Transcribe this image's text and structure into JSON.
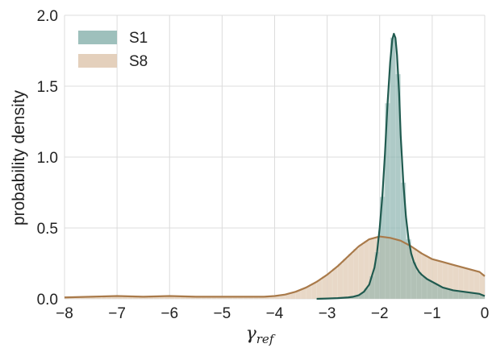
{
  "chart_data": {
    "type": "area",
    "title": "",
    "xlabel": {
      "main": "γ",
      "sub": "ref"
    },
    "ylabel": "probability density",
    "xlim": [
      -8,
      0
    ],
    "ylim": [
      0,
      2.0
    ],
    "xticks": [
      -8,
      -7,
      -6,
      -5,
      -4,
      -3,
      -2,
      -1,
      0
    ],
    "xtick_labels": [
      "−8",
      "−7",
      "−6",
      "−5",
      "−4",
      "−3",
      "−2",
      "−1",
      "0"
    ],
    "yticks": [
      0.0,
      0.5,
      1.0,
      1.5,
      2.0
    ],
    "ytick_labels": [
      "0.0",
      "0.5",
      "1.0",
      "1.5",
      "2.0"
    ],
    "grid": true,
    "legend_position": "top-left",
    "histogram_bin_width": 0.1,
    "series": [
      {
        "name": "S1",
        "fill_color": "#8db5b0",
        "line_color": "#1f5a4f",
        "points": [
          [
            -3.2,
            0.0
          ],
          [
            -3.0,
            0.002
          ],
          [
            -2.8,
            0.005
          ],
          [
            -2.6,
            0.01
          ],
          [
            -2.5,
            0.015
          ],
          [
            -2.4,
            0.025
          ],
          [
            -2.3,
            0.05
          ],
          [
            -2.2,
            0.1
          ],
          [
            -2.1,
            0.22
          ],
          [
            -2.05,
            0.33
          ],
          [
            -2.0,
            0.5
          ],
          [
            -1.95,
            0.72
          ],
          [
            -1.9,
            1.02
          ],
          [
            -1.85,
            1.38
          ],
          [
            -1.8,
            1.67
          ],
          [
            -1.76,
            1.83
          ],
          [
            -1.73,
            1.87
          ],
          [
            -1.7,
            1.84
          ],
          [
            -1.67,
            1.72
          ],
          [
            -1.63,
            1.45
          ],
          [
            -1.6,
            1.15
          ],
          [
            -1.55,
            0.82
          ],
          [
            -1.5,
            0.58
          ],
          [
            -1.45,
            0.42
          ],
          [
            -1.4,
            0.32
          ],
          [
            -1.35,
            0.26
          ],
          [
            -1.3,
            0.22
          ],
          [
            -1.25,
            0.19
          ],
          [
            -1.2,
            0.17
          ],
          [
            -1.1,
            0.14
          ],
          [
            -1.0,
            0.12
          ],
          [
            -0.9,
            0.1
          ],
          [
            -0.8,
            0.08
          ],
          [
            -0.7,
            0.07
          ],
          [
            -0.6,
            0.06
          ],
          [
            -0.5,
            0.055
          ],
          [
            -0.4,
            0.05
          ],
          [
            -0.3,
            0.045
          ],
          [
            -0.2,
            0.04
          ],
          [
            -0.1,
            0.035
          ],
          [
            0.0,
            0.02
          ]
        ]
      },
      {
        "name": "S8",
        "fill_color": "#dfc8b0",
        "line_color": "#a97a4a",
        "points": [
          [
            -8.0,
            0.01
          ],
          [
            -7.5,
            0.015
          ],
          [
            -7.0,
            0.02
          ],
          [
            -6.5,
            0.015
          ],
          [
            -6.0,
            0.02
          ],
          [
            -5.5,
            0.015
          ],
          [
            -5.0,
            0.015
          ],
          [
            -4.5,
            0.015
          ],
          [
            -4.2,
            0.015
          ],
          [
            -4.0,
            0.02
          ],
          [
            -3.8,
            0.03
          ],
          [
            -3.6,
            0.05
          ],
          [
            -3.4,
            0.08
          ],
          [
            -3.2,
            0.12
          ],
          [
            -3.0,
            0.17
          ],
          [
            -2.8,
            0.23
          ],
          [
            -2.6,
            0.3
          ],
          [
            -2.4,
            0.37
          ],
          [
            -2.2,
            0.42
          ],
          [
            -2.0,
            0.44
          ],
          [
            -1.8,
            0.43
          ],
          [
            -1.6,
            0.41
          ],
          [
            -1.4,
            0.37
          ],
          [
            -1.2,
            0.32
          ],
          [
            -1.0,
            0.28
          ],
          [
            -0.8,
            0.26
          ],
          [
            -0.6,
            0.24
          ],
          [
            -0.4,
            0.22
          ],
          [
            -0.2,
            0.2
          ],
          [
            -0.1,
            0.19
          ],
          [
            0.0,
            0.16
          ]
        ]
      }
    ]
  }
}
